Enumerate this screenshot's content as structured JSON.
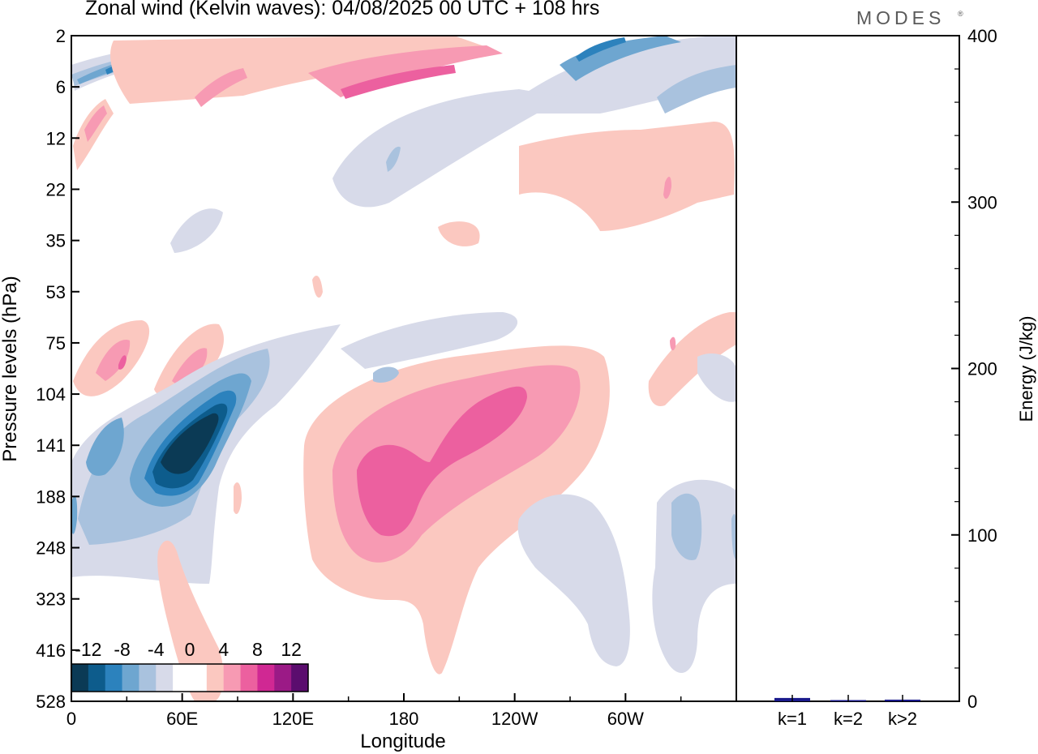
{
  "title": "Zonal wind (Kelvin waves):  04/08/2025  00 UTC  + 108 hrs",
  "brand": "MODES",
  "brand_mark": "®",
  "chart_data": [
    {
      "type": "heatmap",
      "title": "Zonal wind (Kelvin waves)",
      "xlabel": "Longitude",
      "ylabel": "Pressure levels (hPa)",
      "x_ticks": [
        "0",
        "60E",
        "120E",
        "180",
        "120W",
        "60W"
      ],
      "y_ticks": [
        "2",
        "6",
        "12",
        "22",
        "35",
        "53",
        "75",
        "104",
        "141",
        "188",
        "248",
        "323",
        "416",
        "528"
      ],
      "xlim": [
        0,
        360
      ],
      "colorbar": {
        "labels": [
          "-12",
          "-8",
          "-4",
          "0",
          "4",
          "8",
          "12"
        ],
        "colors": [
          "#0b3a55",
          "#0d5c8c",
          "#2c82bd",
          "#6ea6d0",
          "#a9c2de",
          "#d7dae9",
          "#ffffff",
          "#ffffff",
          "#fbc8c0",
          "#f79ab3",
          "#ec609f",
          "#d02893",
          "#9b1a86",
          "#5b0d6e"
        ]
      },
      "features": [
        {
          "name": "negative-core",
          "lon": [
            45,
            78
          ],
          "hPa": [
            110,
            200
          ],
          "value": -14
        },
        {
          "name": "positive-core-east",
          "lon": [
            150,
            200
          ],
          "hPa": [
            140,
            250
          ],
          "value": 8
        },
        {
          "name": "positive-core-central",
          "lon": [
            190,
            245
          ],
          "hPa": [
            104,
            160
          ],
          "value": 8
        },
        {
          "name": "upper-negative-band",
          "lon": [
            0,
            60
          ],
          "hPa": [
            2,
            6
          ],
          "value": -6
        },
        {
          "name": "upper-positive-band",
          "lon": [
            150,
            250
          ],
          "hPa": [
            3,
            6
          ],
          "value": 6
        }
      ]
    },
    {
      "type": "bar",
      "title": "Energy",
      "ylabel": "Energy (J/kg)",
      "categories": [
        "k=1",
        "k=2",
        "k>2"
      ],
      "values": [
        2,
        0.5,
        1
      ],
      "ylim": [
        0,
        400
      ],
      "y_ticks": [
        "0",
        "100",
        "200",
        "300",
        "400"
      ],
      "bar_color": "#1a1a8c"
    }
  ]
}
